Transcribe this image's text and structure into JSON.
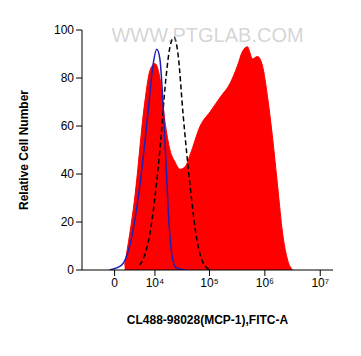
{
  "chart_data": {
    "type": "histogram",
    "xlabel": "CL488-98028(MCP-1),FITC-A",
    "ylabel": "Relative Cell Number",
    "annotations": [
      "WWW.PTGLAB.COM"
    ],
    "log": "x",
    "xlim": [
      -7000,
      17000000
    ],
    "xticks": [
      0,
      {
        "value": 10000,
        "label": "10⁴"
      },
      {
        "value": 100000,
        "label": "10⁵"
      },
      {
        "value": 1000000,
        "label": "10⁶"
      },
      {
        "value": 10000000,
        "label": "10⁷"
      }
    ],
    "ylim": [
      0,
      100
    ],
    "yticks": [
      0,
      20,
      40,
      60,
      80,
      100
    ],
    "series": [
      {
        "type": "area",
        "color": "#ff0000",
        "line_style": "solid",
        "x": [
          1668,
          3630,
          6246,
          7941,
          10000,
          12420,
          15440,
          19160,
          23720,
          29300,
          36180,
          44620,
          67880,
          103200,
          156700,
          238000,
          319000,
          393000,
          485000,
          598000,
          737000,
          908000,
          1120000,
          1380000,
          1700000,
          2100000,
          2590000,
          3190000
        ],
        "values": [
          2,
          30,
          70,
          83,
          86,
          80,
          62,
          50,
          45,
          42,
          43,
          48,
          60,
          66,
          72,
          78,
          85,
          91,
          93,
          88,
          89,
          85,
          72,
          55,
          35,
          15,
          4,
          0
        ]
      },
      {
        "type": "line",
        "color": "#000000",
        "line_style": "dashed",
        "x": [
          4838,
          7941,
          12420,
          16140,
          19160,
          22700,
          26900,
          33240,
          44620,
          59870,
          76970,
          103200
        ],
        "values": [
          2,
          15,
          50,
          80,
          93,
          97,
          90,
          65,
          35,
          12,
          3,
          0
        ]
      },
      {
        "type": "line",
        "color": "#1f1fb4",
        "line_style": "solid",
        "x": [
          -815,
          1150,
          2593,
          4838,
          7229,
          9114,
          10875,
          12420,
          14180,
          16140,
          18340,
          20860,
          24730,
          36180
        ],
        "values": [
          0,
          2,
          10,
          35,
          65,
          85,
          92,
          88,
          70,
          45,
          20,
          6,
          1,
          0
        ]
      }
    ]
  }
}
